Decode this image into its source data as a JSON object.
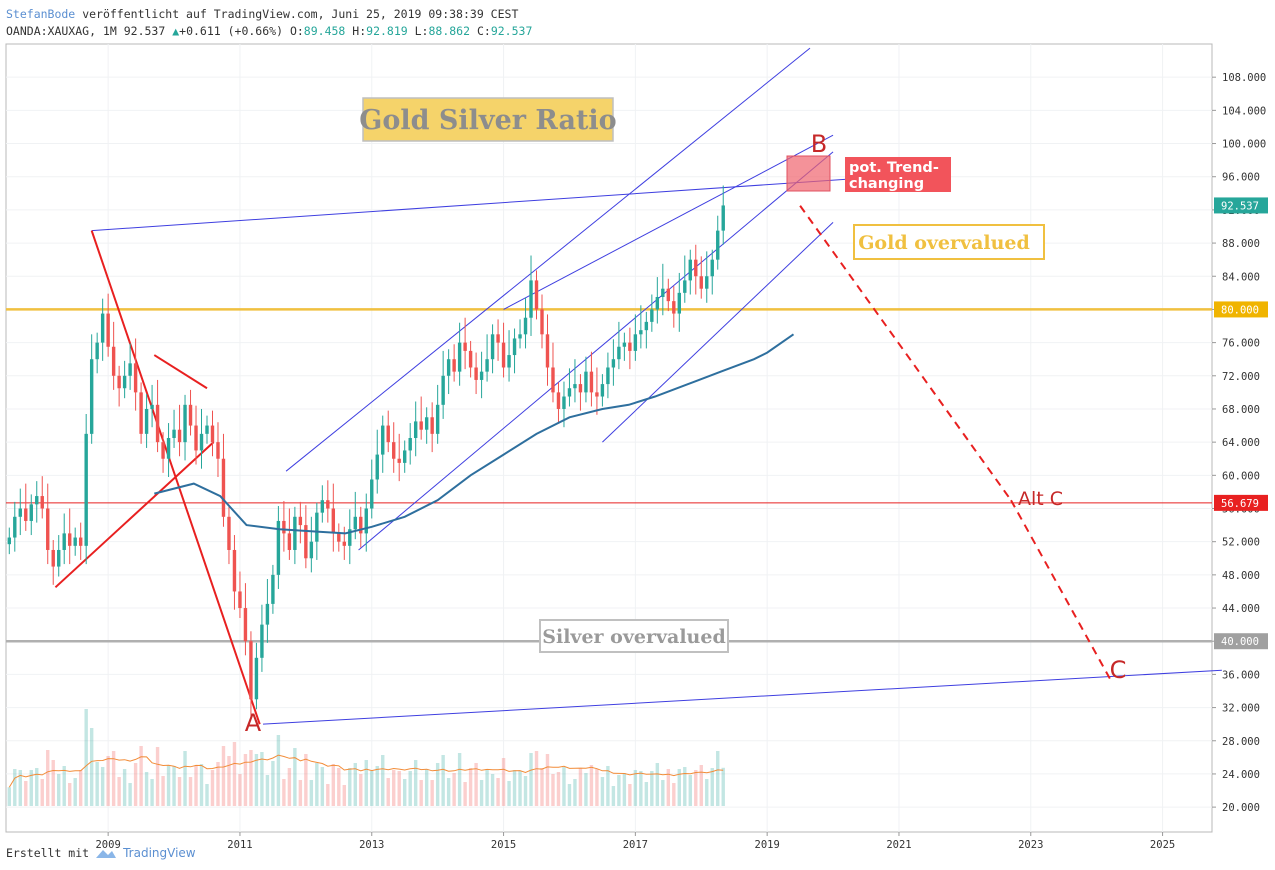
{
  "header": {
    "author": "StefanBode",
    "published": "veröffentlicht auf TradingView.com, Juni 25, 2019 09:38:39 CEST",
    "symbol": "OANDA:XAUXAG, 1M",
    "last": "92.537",
    "change": "+0.611 (+0.66%)",
    "o_label": "O:",
    "o": "89.458",
    "h_label": "H:",
    "h": "92.819",
    "l_label": "L:",
    "l": "88.862",
    "c_label": "C:",
    "c": "92.537"
  },
  "footer": {
    "created_with": "Erstellt mit",
    "brand": "TradingView"
  },
  "colors": {
    "up": "#26a69a",
    "down": "#ef5350",
    "trendline": "#3f3fe0",
    "red_line": "#e82020",
    "gold": "#f0c040",
    "grey": "#b0b0b0",
    "ma": "#2e6f9e",
    "vol_ma": "#f28c38"
  },
  "chart_data": {
    "type": "candlestick",
    "y_axis_labels": [
      "108.000",
      "104.000",
      "100.000",
      "96.000",
      "92.000",
      "88.000",
      "84.000",
      "80.000",
      "76.000",
      "72.000",
      "68.000",
      "64.000",
      "60.000",
      "56.000",
      "52.000",
      "48.000",
      "44.000",
      "40.000",
      "36.000",
      "32.000",
      "28.000",
      "24.000",
      "20.000"
    ],
    "x_axis_labels": [
      "2009",
      "2011",
      "2013",
      "2015",
      "2017",
      "2019",
      "2021",
      "2023",
      "2025"
    ],
    "ylim": [
      17,
      112
    ],
    "price_tags": [
      {
        "value": "92.537",
        "color": "#26a69a"
      },
      {
        "value": "80.000",
        "color": "#f0b400"
      },
      {
        "value": "56.679",
        "color": "#e82020"
      },
      {
        "value": "40.000",
        "color": "#a0a0a0"
      }
    ],
    "horizontal_levels": [
      {
        "value": 80.0,
        "color": "#f0c040"
      },
      {
        "value": 56.679,
        "color": "#e82020"
      },
      {
        "value": 40.0,
        "color": "#b0b0b0"
      }
    ],
    "monthly_close": [
      52.5,
      55.0,
      56.0,
      54.5,
      56.5,
      57.5,
      56.0,
      51.0,
      49.0,
      51.0,
      53.0,
      51.5,
      52.5,
      51.5,
      65.0,
      74.0,
      76.0,
      79.5,
      75.5,
      72.0,
      70.5,
      72.0,
      73.5,
      70.0,
      65.0,
      68.0,
      68.5,
      64.0,
      62.0,
      64.5,
      65.5,
      64.0,
      68.5,
      66.0,
      63.0,
      65.0,
      66.0,
      64.0,
      62.0,
      55.0,
      51.0,
      46.0,
      44.0,
      40.0,
      33.0,
      38.0,
      42.0,
      44.5,
      48.0,
      54.5,
      53.0,
      51.0,
      55.0,
      54.0,
      50.0,
      52.0,
      55.5,
      57.0,
      56.0,
      53.0,
      52.0,
      51.5,
      53.5,
      55.0,
      53.0,
      56.0,
      59.5,
      62.5,
      66.0,
      64.0,
      62.0,
      61.5,
      63.0,
      64.5,
      66.5,
      65.5,
      67.0,
      65.0,
      68.5,
      72.0,
      74.0,
      72.5,
      76.0,
      75.0,
      73.0,
      71.5,
      72.5,
      74.0,
      77.0,
      76.0,
      73.0,
      74.5,
      76.5,
      77.0,
      79.0,
      83.5,
      80.0,
      77.0,
      73.0,
      70.0,
      68.0,
      69.5,
      70.5,
      71.0,
      70.0,
      72.5,
      70.0,
      69.5,
      71.0,
      73.0,
      74.0,
      75.5,
      76.0,
      75.0,
      77.0,
      77.5,
      78.5,
      80.0,
      81.5,
      82.5,
      81.0,
      79.5,
      82.0,
      83.5,
      86.0,
      84.0,
      82.5,
      84.0,
      86.0,
      89.5,
      92.537
    ],
    "moving_average": [
      [
        2009.7,
        57.8
      ],
      [
        2010.3,
        59.0
      ],
      [
        2010.7,
        57.5
      ],
      [
        2011.1,
        54.0
      ],
      [
        2011.6,
        53.5
      ],
      [
        2012.2,
        53.2
      ],
      [
        2012.6,
        53.0
      ],
      [
        2013.0,
        53.8
      ],
      [
        2013.5,
        55.0
      ],
      [
        2014.0,
        57.0
      ],
      [
        2014.5,
        60.0
      ],
      [
        2015.0,
        62.5
      ],
      [
        2015.5,
        65.0
      ],
      [
        2016.0,
        67.0
      ],
      [
        2016.5,
        68.0
      ],
      [
        2016.9,
        68.5
      ],
      [
        2017.3,
        69.5
      ],
      [
        2017.8,
        71.0
      ],
      [
        2018.3,
        72.5
      ],
      [
        2018.8,
        74.0
      ],
      [
        2019.0,
        74.8
      ],
      [
        2019.4,
        77.0
      ]
    ],
    "annotations": {
      "title": "Gold Silver Ratio",
      "gold_overvalued": "Gold overvalued",
      "silver_overvalued": "Silver overvalued",
      "trend_change": "pot. Trend-changing",
      "wave_a": "A",
      "wave_b": "B",
      "wave_c": "C",
      "wave_alt_c": "Alt C"
    }
  }
}
